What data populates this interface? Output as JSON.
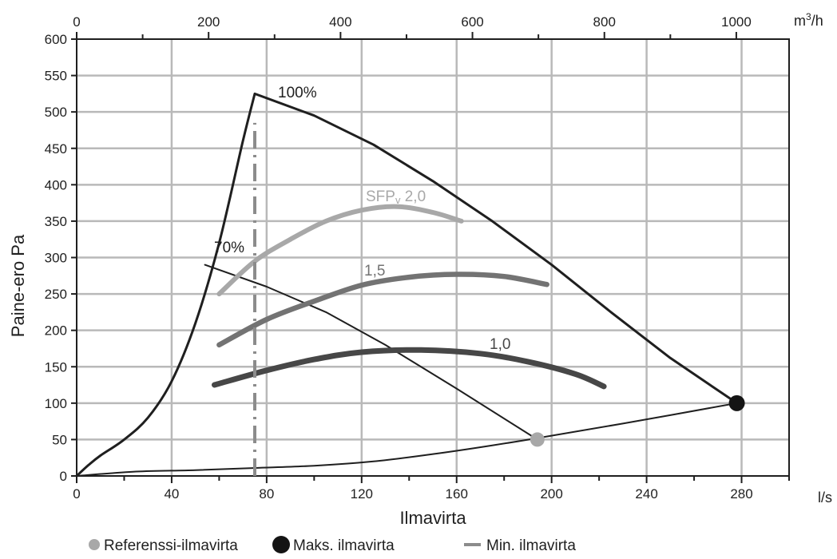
{
  "chart_data": {
    "type": "line",
    "title": "",
    "xlabel": "Ilmavirta",
    "ylabel": "Paine-ero Pa",
    "x_unit": "l/s",
    "top_unit": "m³/h",
    "xlim": [
      0,
      300
    ],
    "ylim": [
      0,
      600
    ],
    "top_xlim": [
      0,
      1080
    ],
    "grid": true,
    "x_ticks": [
      0,
      40,
      80,
      120,
      160,
      200,
      240,
      280
    ],
    "y_ticks": [
      0,
      50,
      100,
      150,
      200,
      250,
      300,
      350,
      400,
      450,
      500,
      550,
      600
    ],
    "top_ticks": [
      0,
      200,
      400,
      600,
      800,
      1000
    ],
    "series": [
      {
        "key": "fan_100",
        "label": "100%",
        "color": "#1f1f1f",
        "points": [
          [
            0,
            0
          ],
          [
            5,
            15
          ],
          [
            10,
            28
          ],
          [
            20,
            50
          ],
          [
            30,
            80
          ],
          [
            40,
            130
          ],
          [
            50,
            210
          ],
          [
            60,
            320
          ],
          [
            70,
            460
          ],
          [
            75,
            525
          ],
          [
            100,
            495
          ],
          [
            125,
            455
          ],
          [
            150,
            405
          ],
          [
            175,
            350
          ],
          [
            200,
            290
          ],
          [
            225,
            225
          ],
          [
            250,
            162
          ],
          [
            278,
            100
          ]
        ]
      },
      {
        "key": "fan_70",
        "label": "70%",
        "color": "#1f1f1f",
        "points": [
          [
            54,
            290
          ],
          [
            80,
            260
          ],
          [
            105,
            225
          ],
          [
            130,
            180
          ],
          [
            160,
            120
          ],
          [
            194,
            50
          ]
        ]
      },
      {
        "key": "system",
        "label": "",
        "color": "#1f1f1f",
        "points": [
          [
            0,
            0
          ],
          [
            25,
            6
          ],
          [
            50,
            8
          ],
          [
            75,
            11
          ],
          [
            100,
            14
          ],
          [
            125,
            20
          ],
          [
            150,
            30
          ],
          [
            175,
            42
          ],
          [
            194,
            52
          ],
          [
            230,
            72
          ],
          [
            278,
            100
          ]
        ]
      },
      {
        "key": "sfp_2_0",
        "label": "SFPv 2,0",
        "color": "#a8a8a8",
        "points": [
          [
            60,
            250
          ],
          [
            75,
            295
          ],
          [
            90,
            325
          ],
          [
            105,
            350
          ],
          [
            120,
            365
          ],
          [
            135,
            370
          ],
          [
            150,
            362
          ],
          [
            162,
            350
          ]
        ]
      },
      {
        "key": "sfp_1_5",
        "label": "1,5",
        "color": "#737373",
        "points": [
          [
            60,
            180
          ],
          [
            80,
            215
          ],
          [
            100,
            240
          ],
          [
            120,
            262
          ],
          [
            140,
            273
          ],
          [
            160,
            277
          ],
          [
            180,
            274
          ],
          [
            198,
            263
          ]
        ]
      },
      {
        "key": "sfp_1_0",
        "label": "1,0",
        "color": "#474747",
        "points": [
          [
            58,
            125
          ],
          [
            80,
            145
          ],
          [
            100,
            160
          ],
          [
            120,
            170
          ],
          [
            145,
            173
          ],
          [
            170,
            168
          ],
          [
            190,
            157
          ],
          [
            210,
            140
          ],
          [
            222,
            123
          ]
        ]
      }
    ],
    "min_airflow": {
      "x": 75,
      "y_range": [
        0,
        485
      ],
      "color": "#8c8c8c"
    },
    "points": [
      {
        "name": "Referenssi-ilmavirta",
        "x": 194,
        "y": 50,
        "color": "#a8a8a8"
      },
      {
        "name": "Maks. ilmavirta",
        "x": 278,
        "y": 100,
        "color": "#141414"
      }
    ],
    "legend": [
      {
        "label": "Referenssi-ilmavirta",
        "marker": "dot",
        "color": "#a8a8a8"
      },
      {
        "label": "Maks. ilmavirta",
        "marker": "dot",
        "color": "#141414"
      },
      {
        "label": "Min. ilmavirta",
        "marker": "dash",
        "color": "#8c8c8c"
      }
    ],
    "legend_position": "bottom"
  }
}
